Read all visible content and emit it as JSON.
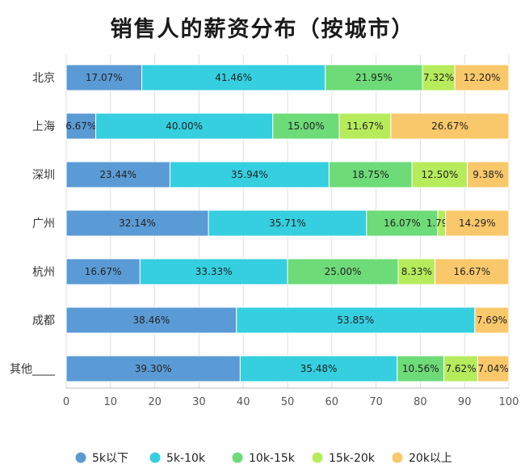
{
  "chart_data": {
    "type": "bar",
    "orientation": "horizontal",
    "stacked": true,
    "title": "销售人的薪资分布（按城市）",
    "categories": [
      "北京",
      "上海",
      "深圳",
      "广州",
      "杭州",
      "成都",
      "其他____"
    ],
    "series": [
      {
        "name": "5k以下",
        "color": "#5b9bd5",
        "values": [
          17.07,
          6.67,
          23.44,
          32.14,
          16.67,
          38.46,
          39.3
        ]
      },
      {
        "name": "5k-10k",
        "color": "#35cfe0",
        "values": [
          41.46,
          40.0,
          35.94,
          35.71,
          33.33,
          53.85,
          35.48
        ]
      },
      {
        "name": "10k-15k",
        "color": "#6ddb78",
        "values": [
          21.95,
          15.0,
          18.75,
          16.07,
          25.0,
          0,
          10.56
        ]
      },
      {
        "name": "15k-20k",
        "color": "#b6ec5c",
        "values": [
          7.32,
          11.67,
          12.5,
          1.79,
          8.33,
          0,
          7.62
        ]
      },
      {
        "name": "20k以上",
        "color": "#f9c86b",
        "values": [
          12.2,
          26.67,
          9.38,
          14.29,
          16.67,
          7.69,
          7.04
        ]
      }
    ],
    "labels": [
      [
        "17.07%",
        "41.46%",
        "21.95%",
        "7.32%",
        "12.20%"
      ],
      [
        "6.67%",
        "40.00%",
        "15.00%",
        "11.67%",
        "26.67%"
      ],
      [
        "23.44%",
        "35.94%",
        "18.75%",
        "12.50%",
        "9.38%"
      ],
      [
        "32.14%",
        "35.71%",
        "16.07%",
        "1.79%",
        "14.29%"
      ],
      [
        "16.67%",
        "33.33%",
        "25.00%",
        "8.33%",
        "16.67%"
      ],
      [
        "38.46%",
        "53.85%",
        "",
        "",
        "7.69%"
      ],
      [
        "39.30%",
        "35.48%",
        "10.56%",
        "7.62%",
        "7.04%"
      ]
    ],
    "xlim": [
      0,
      100
    ],
    "xticks": [
      0,
      10,
      20,
      30,
      40,
      50,
      60,
      70,
      80,
      90,
      100
    ],
    "xtick_labels": [
      "0",
      "10",
      "20",
      "30",
      "40",
      "50",
      "60",
      "70",
      "80",
      "90",
      "100"
    ],
    "grid": true,
    "legend_position": "bottom"
  }
}
